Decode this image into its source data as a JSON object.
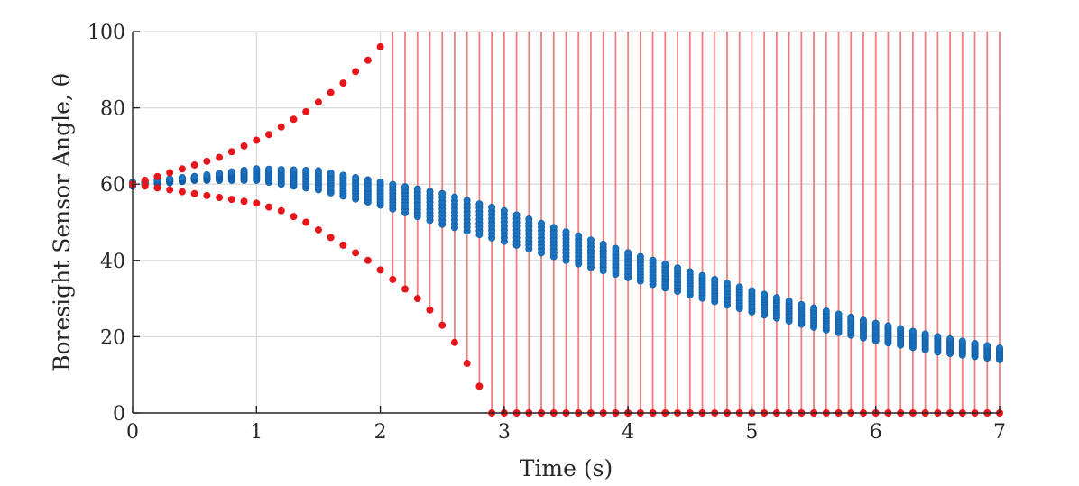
{
  "chart_data": {
    "type": "scatter",
    "title": "",
    "xlabel": "Time (s)",
    "ylabel": "Boresight Sensor Angle, θ",
    "xlim": [
      0,
      7
    ],
    "ylim": [
      0,
      100
    ],
    "xticks": [
      "0",
      "1",
      "2",
      "3",
      "4",
      "5",
      "6",
      "7"
    ],
    "yticks": [
      "0",
      "20",
      "40",
      "60",
      "80",
      "100"
    ],
    "grid": true,
    "legend": "none",
    "colors": {
      "bounds_points": "#e8161b",
      "bounds_lines": "#f07f7f",
      "samples": "#1e73be",
      "samples_edge": "#0f5ea8",
      "axis": "#262626",
      "grid": "#dcdcdc"
    },
    "series": [
      {
        "role": "upper-bound",
        "style": "red dots with vertical red lines to top of axis once saturated",
        "x": [
          0,
          0.1,
          0.2,
          0.3,
          0.4,
          0.5,
          0.6,
          0.7,
          0.8,
          0.9,
          1.0,
          1.1,
          1.2,
          1.3,
          1.4,
          1.5,
          1.6,
          1.7,
          1.8,
          1.9,
          2.0,
          2.1,
          2.2,
          2.3,
          2.4,
          2.5,
          2.6,
          2.7,
          2.8,
          2.9,
          3.0,
          3.1,
          3.2,
          3.3,
          3.4,
          3.5,
          3.6,
          3.7,
          3.8,
          3.9,
          4.0,
          4.1,
          4.2,
          4.3,
          4.4,
          4.5,
          4.6,
          4.7,
          4.8,
          4.9,
          5.0,
          5.1,
          5.2,
          5.3,
          5.4,
          5.5,
          5.6,
          5.7,
          5.8,
          5.9,
          6.0,
          6.1,
          6.2,
          6.3,
          6.4,
          6.5,
          6.6,
          6.7,
          6.8,
          6.9,
          7.0
        ],
        "y": [
          60,
          61,
          62,
          63,
          64,
          65,
          66,
          67,
          68.5,
          70,
          71.5,
          73,
          75,
          77,
          79,
          81.5,
          84,
          86.5,
          89.5,
          92.5,
          96,
          100,
          100,
          100,
          100,
          100,
          100,
          100,
          100,
          100,
          100,
          100,
          100,
          100,
          100,
          100,
          100,
          100,
          100,
          100,
          100,
          100,
          100,
          100,
          100,
          100,
          100,
          100,
          100,
          100,
          100,
          100,
          100,
          100,
          100,
          100,
          100,
          100,
          100,
          100,
          100,
          100,
          100,
          100,
          100,
          100,
          100,
          100,
          100,
          100,
          100
        ]
      },
      {
        "role": "lower-bound",
        "style": "red dots, saturated at 0",
        "x": [
          0,
          0.1,
          0.2,
          0.3,
          0.4,
          0.5,
          0.6,
          0.7,
          0.8,
          0.9,
          1.0,
          1.1,
          1.2,
          1.3,
          1.4,
          1.5,
          1.6,
          1.7,
          1.8,
          1.9,
          2.0,
          2.1,
          2.2,
          2.3,
          2.4,
          2.5,
          2.6,
          2.7,
          2.8,
          2.9,
          3.0,
          3.1,
          3.2,
          3.3,
          3.4,
          3.5,
          3.6,
          3.7,
          3.8,
          3.9,
          4.0,
          4.1,
          4.2,
          4.3,
          4.4,
          4.5,
          4.6,
          4.7,
          4.8,
          4.9,
          5.0,
          5.1,
          5.2,
          5.3,
          5.4,
          5.5,
          5.6,
          5.7,
          5.8,
          5.9,
          6.0,
          6.1,
          6.2,
          6.3,
          6.4,
          6.5,
          6.6,
          6.7,
          6.8,
          6.9,
          7.0
        ],
        "y": [
          60,
          59.5,
          59,
          58.5,
          58,
          57.5,
          57,
          56.5,
          56,
          55.5,
          55,
          54,
          53,
          51.5,
          50,
          48,
          46,
          44,
          42,
          40,
          37.5,
          35,
          32.5,
          30,
          27,
          23,
          18.5,
          13,
          7,
          0,
          0,
          0,
          0,
          0,
          0,
          0,
          0,
          0,
          0,
          0,
          0,
          0,
          0,
          0,
          0,
          0,
          0,
          0,
          0,
          0,
          0,
          0,
          0,
          0,
          0,
          0,
          0,
          0,
          0,
          0,
          0,
          0,
          0,
          0,
          0,
          0,
          0,
          0,
          0,
          0,
          0
        ]
      },
      {
        "role": "samples-envelope-upper",
        "style": "dense blue markers filling band between upper and lower envelopes",
        "x": [
          0,
          0.5,
          1.0,
          1.5,
          2.0,
          2.5,
          3.0,
          3.5,
          4.0,
          4.5,
          5.0,
          5.5,
          6.0,
          6.5,
          7.0
        ],
        "y": [
          60.5,
          62,
          64,
          63.5,
          60.5,
          57.5,
          53,
          47.5,
          42,
          37,
          32,
          27.5,
          23.5,
          20,
          17
        ]
      },
      {
        "role": "samples-envelope-lower",
        "style": "dense blue markers filling band between upper and lower envelopes",
        "x": [
          0,
          0.5,
          1.0,
          1.5,
          2.0,
          2.5,
          3.0,
          3.5,
          4.0,
          4.5,
          5.0,
          5.5,
          6.0,
          6.5,
          7.0
        ],
        "y": [
          59.5,
          61,
          61,
          58.5,
          54.5,
          49.5,
          45,
          40,
          35.5,
          31,
          26.5,
          22.5,
          19,
          16,
          14
        ]
      }
    ]
  }
}
